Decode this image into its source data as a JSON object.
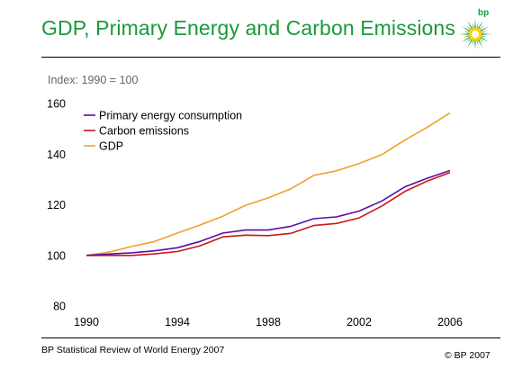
{
  "header": {
    "title": "GDP, Primary Energy and Carbon Emissions",
    "logo_text": "bp"
  },
  "footer": {
    "source": "BP Statistical Review of World Energy 2007",
    "copyright": "© BP 2007"
  },
  "colors": {
    "title": "#1a9a3a",
    "primary_energy": "#5b0ea6",
    "carbon": "#c41a1a",
    "gdp": "#f0a12a"
  },
  "chart_data": {
    "type": "line",
    "title": "GDP, Primary Energy and Carbon Emissions",
    "subtitle": "Index: 1990 = 100",
    "xlabel": "",
    "ylabel": "",
    "ylim": [
      80,
      160
    ],
    "xlim": [
      1990,
      2006
    ],
    "y_ticks": [
      80,
      100,
      120,
      140,
      160
    ],
    "x_ticks": [
      1990,
      1994,
      1998,
      2002,
      2006
    ],
    "grid": false,
    "legend_position": "top-left",
    "x": [
      1990,
      1991,
      1992,
      1993,
      1994,
      1995,
      1996,
      1997,
      1998,
      1999,
      2000,
      2001,
      2002,
      2003,
      2004,
      2005,
      2006
    ],
    "series": [
      {
        "name": "Primary energy consumption",
        "color": "#5b0ea6",
        "values": [
          100,
          100.5,
          101,
          101.8,
          103,
          105.5,
          108.8,
          110,
          110,
          111.5,
          114.5,
          115.2,
          117.5,
          121.5,
          127,
          130.5,
          133.5
        ]
      },
      {
        "name": "Carbon emissions",
        "color": "#c41a1a",
        "values": [
          100,
          100,
          100,
          100.6,
          101.5,
          103.8,
          107.3,
          108,
          107.8,
          108.7,
          111.8,
          112.6,
          114.8,
          119.5,
          125.2,
          129.4,
          132.7
        ]
      },
      {
        "name": "GDP",
        "color": "#f0a12a",
        "values": [
          100,
          101.3,
          103.5,
          105.5,
          108.8,
          112,
          115.5,
          119.8,
          122.7,
          126.3,
          131.6,
          133.4,
          136.3,
          139.8,
          145.5,
          150.6,
          156.3
        ]
      }
    ]
  }
}
